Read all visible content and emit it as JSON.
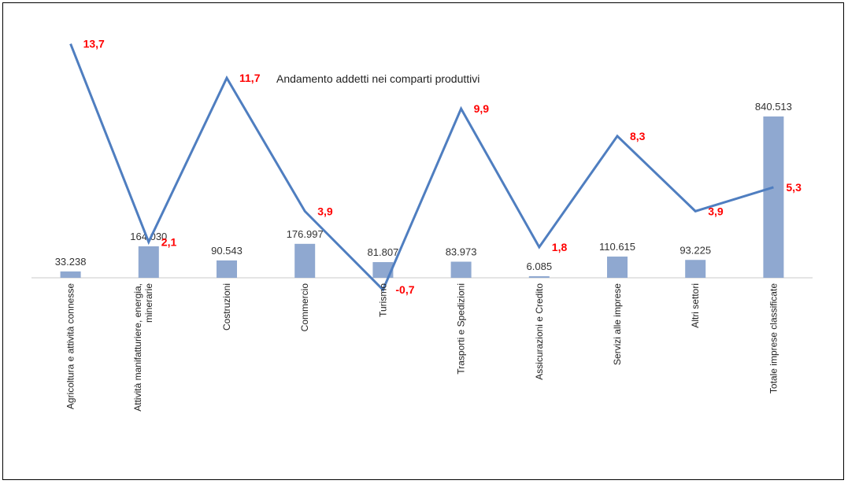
{
  "chart_data": {
    "type": "bar+line",
    "title": "Andamento addetti nei comparti produttivi",
    "categories": [
      [
        "Agricoltura e attività connesse"
      ],
      [
        "Attività manifatturiere, energia,",
        "minerarie"
      ],
      [
        "Costruzioni"
      ],
      [
        "Commercio"
      ],
      [
        "Turismo"
      ],
      [
        "Trasporti e Spedizioni"
      ],
      [
        "Assicurazioni e Credito"
      ],
      [
        "Servizi alle imprese"
      ],
      [
        "Altri settori"
      ],
      [
        "Totale imprese classificate"
      ]
    ],
    "series": [
      {
        "type": "bar",
        "values": [
          33238,
          164030,
          90543,
          176997,
          81807,
          83973,
          6085,
          110615,
          93225,
          840513
        ],
        "labels": [
          "33.238",
          "164.030",
          "90.543",
          "176.997",
          "81.807",
          "83.973",
          "6.085",
          "110.615",
          "93.225",
          "840.513"
        ],
        "color": "#8FA8D0"
      },
      {
        "type": "line",
        "values": [
          13.7,
          2.1,
          11.7,
          3.9,
          -0.7,
          9.9,
          1.8,
          8.3,
          3.9,
          5.3
        ],
        "labels": [
          "13,7",
          "2,1",
          "11,7",
          "3,9",
          "-0,7",
          "9,9",
          "1,8",
          "8,3",
          "3,9",
          "5,3"
        ],
        "color": "#4F7EC0",
        "label_color": "#FF0000"
      }
    ],
    "legend": "none",
    "grid": false
  }
}
